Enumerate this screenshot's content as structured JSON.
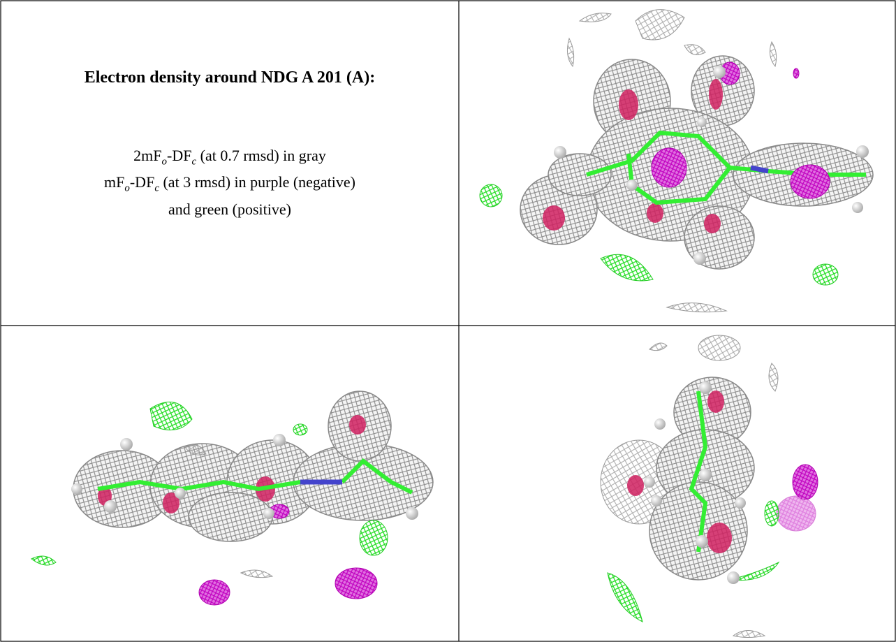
{
  "title": "Electron density around NDG A 201 (A):",
  "caption": {
    "lines": [
      [
        "2mF",
        "o",
        "-DF",
        "c",
        " (at 0.7 rmsd) in gray"
      ],
      [
        "mF",
        "o",
        "-DF",
        "c",
        " (at 3 rmsd) in purple (negative)"
      ],
      [
        "and green (positive)"
      ]
    ]
  }
}
